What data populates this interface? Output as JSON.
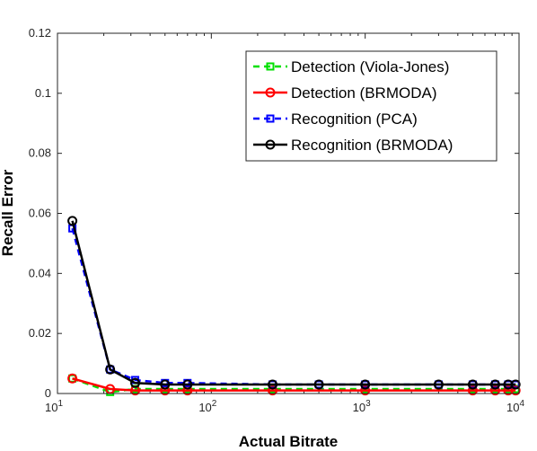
{
  "chart_data": {
    "type": "line",
    "title": "",
    "xlabel": "Actual Bitrate",
    "ylabel": "Recall Error",
    "xscale": "log",
    "xlim": [
      10,
      10000
    ],
    "ylim": [
      0,
      0.12
    ],
    "yticks": [
      "0",
      "0.02",
      "0.04",
      "0.06",
      "0.08",
      "0.1",
      "0.12"
    ],
    "xticks": [
      {
        "value": 10,
        "base": "10",
        "exp": "1"
      },
      {
        "value": 100,
        "base": "10",
        "exp": "2"
      },
      {
        "value": 1000,
        "base": "10",
        "exp": "3"
      },
      {
        "value": 10000,
        "base": "10",
        "exp": "4"
      }
    ],
    "grid": false,
    "legend_position": "top-right",
    "series": [
      {
        "name": "Detection (Viola-Jones)",
        "color": "#00e000",
        "line": "dashed",
        "marker": "square",
        "x": [
          12.5,
          22,
          32,
          50,
          70,
          250,
          1000,
          5000,
          7000,
          8500,
          9500
        ],
        "y": [
          0.005,
          0.0005,
          0.0015,
          0.0015,
          0.0015,
          0.0015,
          0.0015,
          0.0015,
          0.0015,
          0.0015,
          0.0015
        ]
      },
      {
        "name": "Detection (BRMODA)",
        "color": "#ff0000",
        "line": "solid",
        "marker": "circle",
        "x": [
          12.5,
          22,
          32,
          50,
          70,
          250,
          1000,
          5000,
          7000,
          8500,
          9500
        ],
        "y": [
          0.005,
          0.0015,
          0.001,
          0.001,
          0.001,
          0.001,
          0.001,
          0.001,
          0.001,
          0.001,
          0.001
        ]
      },
      {
        "name": "Recognition (PCA)",
        "color": "#0000ff",
        "line": "dashed",
        "marker": "square",
        "x": [
          12.5,
          22,
          32,
          50,
          70,
          250,
          500,
          1000,
          3000,
          5000,
          7000,
          8500,
          9500
        ],
        "y": [
          0.055,
          0.008,
          0.0045,
          0.0035,
          0.0035,
          0.003,
          0.003,
          0.003,
          0.003,
          0.003,
          0.003,
          0.003,
          0.003
        ]
      },
      {
        "name": "Recognition (BRMODA)",
        "color": "#000000",
        "line": "solid",
        "marker": "circle",
        "x": [
          12.5,
          22,
          32,
          50,
          70,
          250,
          500,
          1000,
          3000,
          5000,
          7000,
          8500,
          9500
        ],
        "y": [
          0.0575,
          0.008,
          0.0035,
          0.003,
          0.003,
          0.003,
          0.003,
          0.003,
          0.003,
          0.003,
          0.003,
          0.003,
          0.003
        ]
      }
    ]
  }
}
